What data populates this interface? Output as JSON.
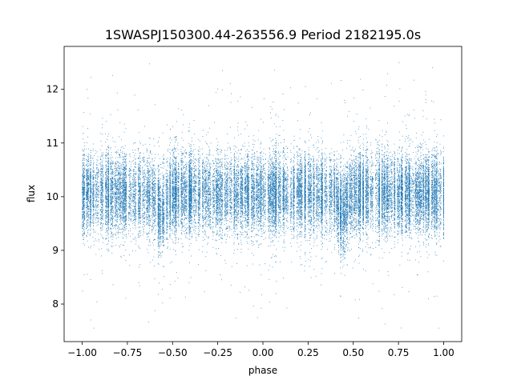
{
  "chart_data": {
    "type": "scatter",
    "title": "1SWASPJ150300.44-263556.9 Period 2182195.0s",
    "xlabel": "phase",
    "ylabel": "flux",
    "xlim": [
      -1.1,
      1.1
    ],
    "ylim": [
      7.3,
      12.8
    ],
    "x_ticks": [
      -1.0,
      -0.75,
      -0.5,
      -0.25,
      0.0,
      0.25,
      0.5,
      0.75,
      1.0
    ],
    "x_tick_labels": [
      "−1.00",
      "−0.75",
      "−0.50",
      "−0.25",
      "0.00",
      "0.25",
      "0.50",
      "0.75",
      "1.00"
    ],
    "y_ticks": [
      8,
      9,
      10,
      11,
      12
    ],
    "y_tick_labels": [
      "8",
      "9",
      "10",
      "11",
      "12"
    ],
    "grid": false,
    "marker_color": "#1f77b4",
    "series": [
      {
        "phase_range": [
          -1.0,
          1.0
        ],
        "median_flux": 10.05,
        "typical_flux_range": [
          9.3,
          10.8
        ],
        "outlier_flux_range": [
          7.55,
          12.6
        ],
        "symmetry": "pattern repeats with phase period 1.0",
        "flux_dips_at_phase": [
          -0.56,
          0.44
        ],
        "approx_point_count": 30000
      }
    ]
  }
}
